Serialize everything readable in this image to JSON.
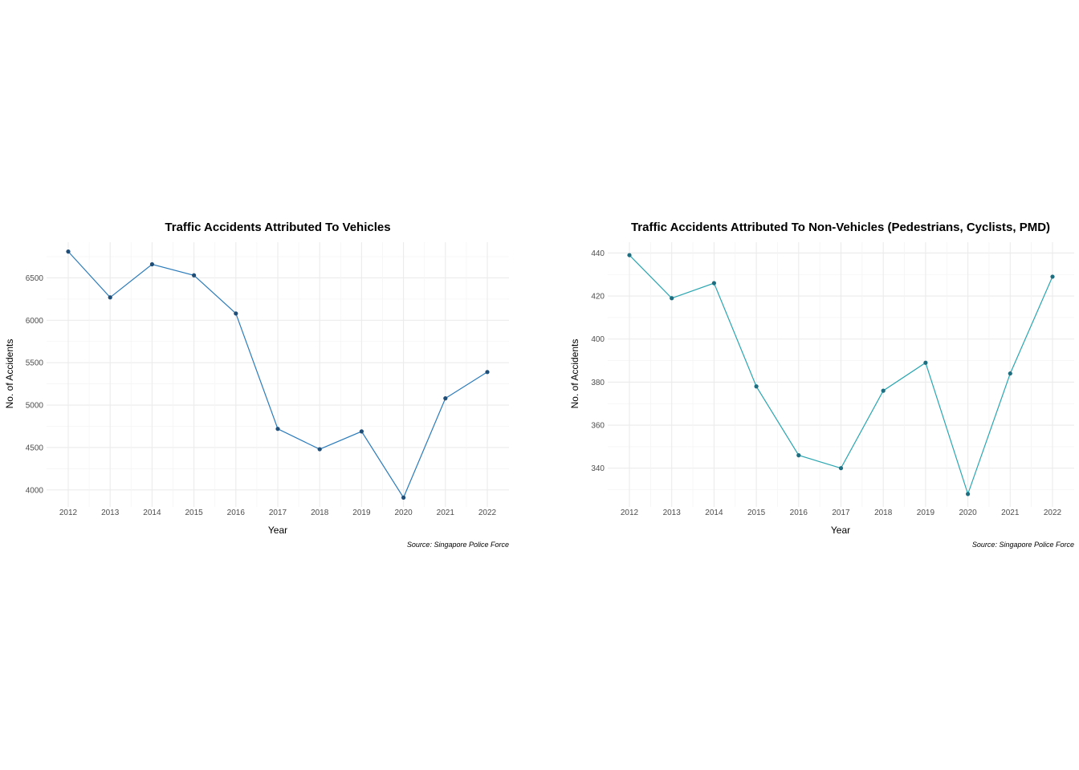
{
  "chart_data": [
    {
      "type": "line",
      "title": "Traffic Accidents Attributed To Vehicles",
      "xlabel": "Year",
      "ylabel": "No. of Accidents",
      "caption": "Source: Singapore Police Force",
      "x": [
        "2012",
        "2013",
        "2014",
        "2015",
        "2016",
        "2017",
        "2018",
        "2019",
        "2020",
        "2021",
        "2022"
      ],
      "values": [
        6810,
        6270,
        6660,
        6530,
        6080,
        4720,
        4480,
        4690,
        3910,
        5080,
        5390
      ],
      "yticks": [
        "4000",
        "4500",
        "5000",
        "5500",
        "6000",
        "6500"
      ],
      "ylim": [
        3800,
        6920
      ],
      "grid": true,
      "line_color": "#2b7bba",
      "point_color": "#1f4e79"
    },
    {
      "type": "line",
      "title": "Traffic Accidents Attributed To Non-Vehicles (Pedestrians, Cyclists, PMD)",
      "xlabel": "Year",
      "ylabel": "No. of Accidents",
      "caption": "Source: Singapore Police Force",
      "x": [
        "2012",
        "2013",
        "2014",
        "2015",
        "2016",
        "2017",
        "2018",
        "2019",
        "2020",
        "2021",
        "2022"
      ],
      "values": [
        439,
        419,
        426,
        378,
        346,
        340,
        376,
        389,
        328,
        384,
        429
      ],
      "yticks": [
        "340",
        "360",
        "380",
        "400",
        "420",
        "440"
      ],
      "ylim": [
        322,
        445
      ],
      "grid": true,
      "line_color": "#2aa5b0",
      "point_color": "#1d6e80"
    }
  ]
}
